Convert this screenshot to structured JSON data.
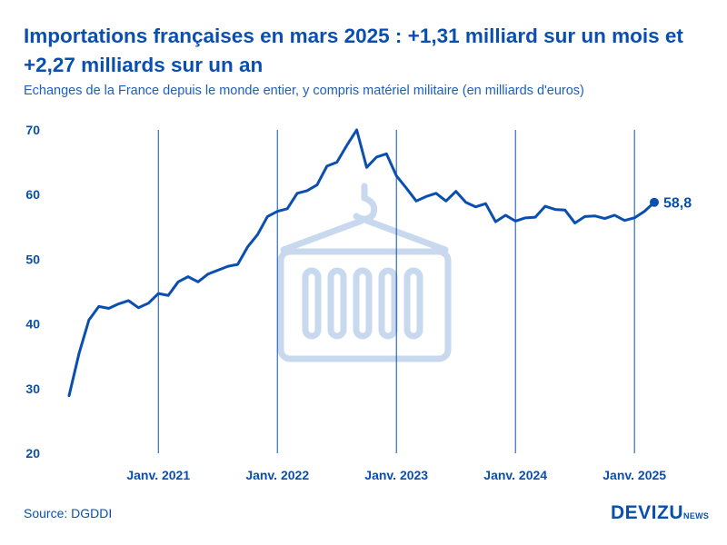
{
  "header": {
    "title": "Importations françaises en mars 2025 : +1,31 milliard sur un mois et +2,27 milliards sur un an",
    "subtitle": "Echanges de la France depuis le monde entier, y compris matériel militaire (en milliards d'euros)"
  },
  "footer": {
    "source": "Source: DGDDI",
    "logo_main": "DEVIZU",
    "logo_sub": "NEWS"
  },
  "colors": {
    "line": "#0a4fb0",
    "text": "#0a4fb0",
    "watermark": "#c8d8ee"
  },
  "chart_data": {
    "type": "line",
    "title": "Importations françaises en mars 2025 : +1,31 milliard sur un mois et +2,27 milliards sur un an",
    "ylabel": "milliards d'euros",
    "xlabel": "",
    "ylim": [
      20,
      70
    ],
    "yticks": [
      20,
      30,
      40,
      50,
      60,
      70
    ],
    "x_start": "2020-04",
    "x_end": "2025-03",
    "xticks": [
      {
        "label": "Janv. 2021",
        "month_index": 9
      },
      {
        "label": "Janv. 2022",
        "month_index": 21
      },
      {
        "label": "Janv. 2023",
        "month_index": 33
      },
      {
        "label": "Janv. 2024",
        "month_index": 45
      },
      {
        "label": "Janv. 2025",
        "month_index": 57
      }
    ],
    "vertical_gridlines_at_xticks": true,
    "series": [
      {
        "name": "Importations",
        "values": [
          28.9,
          35.4,
          40.6,
          42.7,
          42.4,
          43.1,
          43.6,
          42.5,
          43.2,
          44.7,
          44.4,
          46.5,
          47.3,
          46.5,
          47.7,
          48.3,
          48.9,
          49.2,
          51.9,
          53.8,
          56.6,
          57.4,
          57.8,
          60.2,
          60.6,
          61.5,
          64.4,
          65.0,
          67.6,
          70.0,
          64.2,
          65.8,
          66.3,
          62.9,
          61.0,
          59.0,
          59.7,
          60.2,
          59.0,
          60.5,
          58.8,
          58.1,
          58.6,
          55.8,
          56.8,
          55.9,
          56.4,
          56.5,
          58.2,
          57.7,
          57.6,
          55.6,
          56.6,
          56.7,
          56.3,
          56.8,
          56.0,
          56.4,
          57.4,
          58.8
        ]
      }
    ],
    "end_label": "58,8",
    "watermark_icon": "container-hook-icon"
  }
}
